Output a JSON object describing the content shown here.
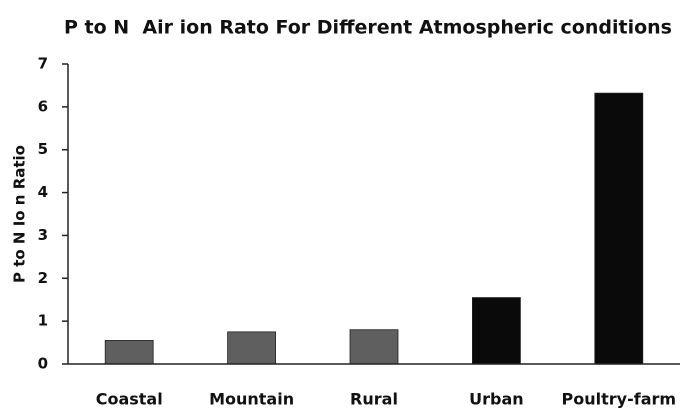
{
  "chart_data": {
    "type": "bar",
    "title": "P to N  Air ion Rato For Different Atmospheric conditions",
    "y_label": "P to N Io n Ratio",
    "categories": [
      "Coastal",
      "Mountain",
      "Rural",
      "Urban",
      "Poultry-farm"
    ],
    "values": [
      0.55,
      0.75,
      0.8,
      1.55,
      6.32
    ],
    "colors": [
      "#5f5f5f",
      "#5f5f5f",
      "#5f5f5f",
      "#0a0a0a",
      "#0a0a0a"
    ],
    "ylim": [
      0,
      7
    ],
    "yticks": [
      0,
      1,
      2,
      3,
      4,
      5,
      6,
      7
    ],
    "grid": false
  }
}
